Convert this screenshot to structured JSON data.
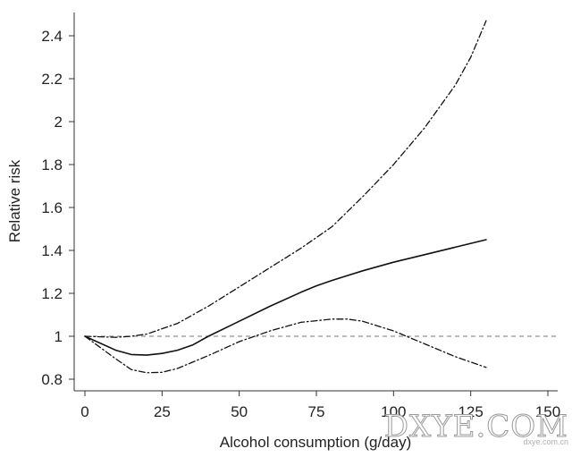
{
  "chart_data": {
    "type": "line",
    "title": "",
    "xlabel": "Alcohol consumption (g/day)",
    "ylabel": "Relative risk",
    "xlim": [
      0,
      150
    ],
    "ylim": [
      0.8,
      2.5
    ],
    "xticks": [
      0,
      25,
      50,
      75,
      100,
      125,
      150
    ],
    "yticks": [
      0.8,
      1,
      1.2,
      1.4,
      1.6,
      1.8,
      2,
      2.2,
      2.4
    ],
    "xtick_labels": [
      "0",
      "25",
      "50",
      "75",
      "100",
      "125",
      "150"
    ],
    "ytick_labels": [
      "0.8",
      "1",
      "1.2",
      "1.4",
      "1.6",
      "1.8",
      "2",
      "2.2",
      "2.4"
    ],
    "grid": false,
    "reference_line": {
      "y": 1,
      "style": "dashed"
    },
    "series": [
      {
        "style": "solid",
        "x": [
          0,
          10,
          15,
          20,
          25,
          30,
          35,
          40,
          50,
          60,
          70,
          75,
          80,
          90,
          100,
          110,
          120,
          130
        ],
        "y": [
          1.0,
          0.935,
          0.915,
          0.912,
          0.92,
          0.935,
          0.96,
          1.0,
          1.07,
          1.14,
          1.205,
          1.235,
          1.26,
          1.305,
          1.345,
          1.38,
          1.415,
          1.45
        ]
      },
      {
        "style": "dash-dot",
        "x": [
          0,
          10,
          15,
          20,
          30,
          40,
          50,
          60,
          70,
          75,
          80,
          90,
          100,
          110,
          120,
          125,
          130
        ],
        "y": [
          1.0,
          0.995,
          1.0,
          1.01,
          1.06,
          1.14,
          1.23,
          1.32,
          1.41,
          1.46,
          1.51,
          1.65,
          1.8,
          1.97,
          2.17,
          2.3,
          2.47
        ]
      },
      {
        "style": "dash-dot",
        "x": [
          0,
          10,
          15,
          20,
          25,
          30,
          40,
          50,
          60,
          70,
          80,
          85,
          90,
          100,
          110,
          120,
          130
        ],
        "y": [
          1.0,
          0.895,
          0.845,
          0.83,
          0.832,
          0.85,
          0.91,
          0.975,
          1.025,
          1.065,
          1.08,
          1.08,
          1.07,
          1.025,
          0.965,
          0.905,
          0.855
        ]
      }
    ]
  },
  "watermark": {
    "text": "DXYE.COM",
    "subtext": "dxye.com.cn"
  }
}
